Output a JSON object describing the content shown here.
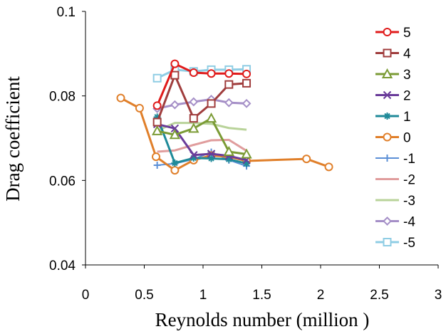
{
  "chart_data": {
    "type": "line",
    "title": "",
    "xlabel": "Reynolds number (million )",
    "ylabel": "Drag coefficient",
    "xlim": [
      0,
      3
    ],
    "ylim": [
      0.04,
      0.1
    ],
    "xticks": [
      "0",
      "0.5",
      "1",
      "1.5",
      "2",
      "2.5",
      "3"
    ],
    "yticks": [
      "0.04",
      "0.06",
      "0.08",
      "0.1"
    ],
    "grid": false,
    "legend_position": "right",
    "series": [
      {
        "name": "5",
        "color": "#e01b1b",
        "marker": "circle",
        "markerFill": "#ffffff",
        "width": 3,
        "x": [
          0.61,
          0.76,
          0.92,
          1.07,
          1.22,
          1.37
        ],
        "y": [
          0.0777,
          0.0876,
          0.0855,
          0.0853,
          0.0853,
          0.0852
        ]
      },
      {
        "name": "4",
        "color": "#a03d3d",
        "marker": "square",
        "markerFill": "#ffffff",
        "width": 3,
        "x": [
          0.61,
          0.76,
          0.92,
          1.07,
          1.22,
          1.37
        ],
        "y": [
          0.0738,
          0.0849,
          0.0747,
          0.0782,
          0.0827,
          0.083
        ]
      },
      {
        "name": "3",
        "color": "#7b9b35",
        "marker": "triangle",
        "markerFill": "#ffffff",
        "width": 3,
        "x": [
          0.61,
          0.76,
          0.92,
          1.07,
          1.22,
          1.37
        ],
        "y": [
          0.0717,
          0.0708,
          0.0723,
          0.0747,
          0.0668,
          0.0662
        ]
      },
      {
        "name": "2",
        "color": "#6a3c9a",
        "marker": "x",
        "markerFill": "none",
        "width": 3,
        "x": [
          0.61,
          0.76,
          0.92,
          1.07,
          1.22,
          1.37
        ],
        "y": [
          0.0733,
          0.0723,
          0.066,
          0.0663,
          0.0658,
          0.0648
        ]
      },
      {
        "name": "1",
        "color": "#1f8a99",
        "marker": "star",
        "markerFill": "none",
        "width": 3,
        "x": [
          0.61,
          0.76,
          0.92,
          1.07,
          1.22,
          1.37
        ],
        "y": [
          0.075,
          0.0641,
          0.0653,
          0.0652,
          0.065,
          0.064
        ]
      },
      {
        "name": "0",
        "color": "#e07f2a",
        "marker": "circle",
        "markerFill": "#ffffff",
        "width": 3,
        "x": [
          0.3,
          0.46,
          0.6,
          0.76,
          0.92,
          1.07,
          1.22,
          1.37,
          1.88,
          2.07
        ],
        "y": [
          0.0795,
          0.0771,
          0.0656,
          0.0624,
          0.0648,
          0.0659,
          0.0656,
          0.0646,
          0.0651,
          0.0632
        ]
      },
      {
        "name": "-1",
        "color": "#5b8fd6",
        "marker": "plus",
        "markerFill": "none",
        "width": 2,
        "x": [
          0.61,
          0.76,
          0.92,
          1.07,
          1.22,
          1.37
        ],
        "y": [
          0.0636,
          0.064,
          0.065,
          0.0667,
          0.0648,
          0.0634
        ]
      },
      {
        "name": "-2",
        "color": "#e09d9d",
        "marker": "none",
        "markerFill": "none",
        "width": 3,
        "x": [
          0.61,
          0.76,
          0.92,
          1.07,
          1.22,
          1.37
        ],
        "y": [
          0.0668,
          0.0671,
          0.0684,
          0.0695,
          0.0696,
          0.067
        ]
      },
      {
        "name": "-3",
        "color": "#b9d39a",
        "marker": "none",
        "markerFill": "none",
        "width": 3,
        "x": [
          0.61,
          0.76,
          0.92,
          1.07,
          1.22,
          1.37
        ],
        "y": [
          0.0718,
          0.0736,
          0.0736,
          0.0734,
          0.0724,
          0.072
        ]
      },
      {
        "name": "-4",
        "color": "#a58fc7",
        "marker": "diamond",
        "markerFill": "#ffffff",
        "width": 3,
        "x": [
          0.61,
          0.76,
          0.92,
          1.07,
          1.22,
          1.37
        ],
        "y": [
          0.077,
          0.0779,
          0.0786,
          0.0792,
          0.0784,
          0.0782
        ]
      },
      {
        "name": "-5",
        "color": "#8fcde4",
        "marker": "square",
        "markerFill": "#ffffff",
        "width": 3,
        "x": [
          0.61,
          0.76,
          0.92,
          1.07,
          1.22,
          1.37
        ],
        "y": [
          0.0842,
          0.0862,
          0.0858,
          0.0862,
          0.0862,
          0.0863
        ]
      }
    ]
  }
}
